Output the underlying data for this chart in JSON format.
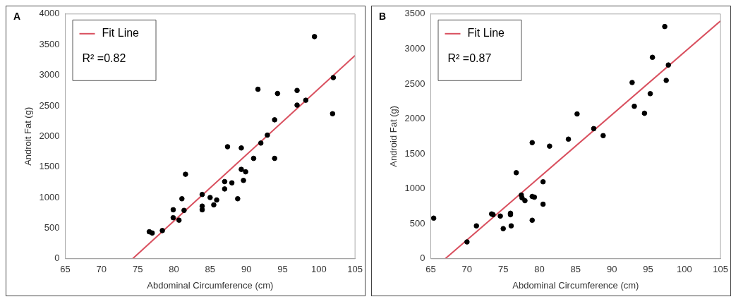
{
  "chart_data": [
    {
      "type": "scatter",
      "title": "A",
      "xlabel": "Abdominal Circumference (cm)",
      "ylabel": "Androit Fat (g)",
      "xlim": [
        65,
        105
      ],
      "xticks": [
        65,
        70,
        75,
        80,
        85,
        90,
        95,
        100,
        105
      ],
      "ylim": [
        0,
        4000
      ],
      "yticks": [
        0,
        500,
        1000,
        1500,
        2000,
        2500,
        3000,
        3500,
        4000
      ],
      "grid": false,
      "legend": "top left",
      "annotations": [
        "R² =0.82"
      ],
      "series": [
        {
          "type": "scatter",
          "marker": "circle",
          "color": "#000000",
          "x": [
            76.6,
            77.0,
            78.4,
            79.9,
            79.9,
            80.7,
            81.1,
            81.4,
            81.6,
            83.9,
            83.9,
            83.9,
            85.0,
            85.5,
            85.9,
            87.0,
            87.0,
            87.4,
            88.0,
            88.8,
            89.3,
            89.3,
            89.6,
            89.9,
            91.0,
            91.6,
            92.0,
            92.9,
            93.9,
            93.9,
            94.3,
            97.0,
            97.0,
            98.2,
            99.4,
            102.0,
            101.9
          ],
          "values": [
            440,
            420,
            460,
            800,
            670,
            630,
            980,
            790,
            1380,
            1050,
            860,
            800,
            1000,
            880,
            960,
            1260,
            1140,
            1830,
            1240,
            980,
            1810,
            1460,
            1280,
            1420,
            1640,
            2770,
            1890,
            2020,
            2270,
            1640,
            2700,
            2750,
            2510,
            2590,
            3630,
            2960,
            2370
          ]
        },
        {
          "type": "line",
          "marker": "none",
          "name": "Fit Line",
          "color": "#d9505f",
          "line_style": "solid",
          "x": [
            74.3,
            105
          ],
          "values": [
            0,
            3320
          ]
        }
      ]
    },
    {
      "type": "scatter",
      "title": "B",
      "xlabel": "Abdominal Circumference (cm)",
      "ylabel": "Android Fat (g)",
      "xlim": [
        65,
        105
      ],
      "xticks": [
        65,
        70,
        75,
        80,
        85,
        90,
        95,
        100,
        105
      ],
      "ylim": [
        0,
        3500
      ],
      "yticks": [
        0,
        500,
        1000,
        1500,
        2000,
        2500,
        3000,
        3500
      ],
      "grid": false,
      "legend": "top left",
      "annotations": [
        "R² =0.87"
      ],
      "series": [
        {
          "type": "scatter",
          "marker": "circle",
          "color": "#000000",
          "x": [
            65.4,
            70.0,
            71.3,
            73.4,
            73.6,
            74.6,
            75.0,
            76.0,
            76.0,
            76.1,
            76.8,
            77.5,
            77.6,
            78.0,
            79.0,
            79.0,
            79.0,
            79.3,
            80.5,
            80.5,
            81.4,
            84.0,
            85.2,
            87.5,
            88.8,
            92.8,
            93.1,
            94.5,
            95.3,
            95.6,
            97.3,
            97.5,
            97.8
          ],
          "values": [
            580,
            240,
            470,
            640,
            630,
            610,
            430,
            650,
            630,
            470,
            1230,
            910,
            870,
            830,
            1660,
            550,
            890,
            880,
            1100,
            780,
            1610,
            1710,
            2070,
            1860,
            1760,
            2520,
            2180,
            2080,
            2360,
            2880,
            3320,
            2550,
            2770
          ]
        },
        {
          "type": "line",
          "marker": "none",
          "name": "Fit Line",
          "color": "#d9505f",
          "line_style": "solid",
          "x": [
            67,
            105
          ],
          "values": [
            0,
            3400
          ]
        }
      ]
    }
  ]
}
